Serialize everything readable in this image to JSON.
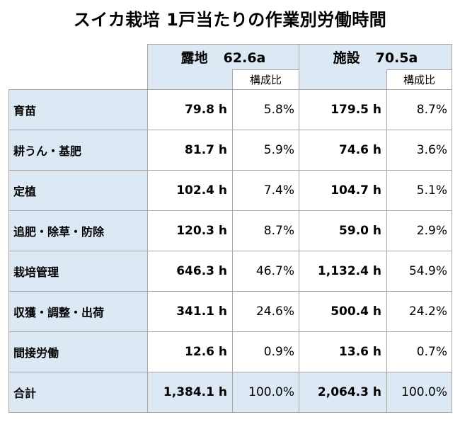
{
  "title": "スイカ栽培 1戸当たりの作業別労働時間",
  "groups": [
    {
      "name": "露地",
      "area": "62.6a",
      "ratio_header": "構成比"
    },
    {
      "name": "施設",
      "area": "70.5a",
      "ratio_header": "構成比"
    }
  ],
  "rows": [
    {
      "label": "育苗",
      "open_hours": "79.8 h",
      "open_ratio": "5.8%",
      "facility_hours": "179.5 h",
      "facility_ratio": "8.7%"
    },
    {
      "label": "耕うん・基肥",
      "open_hours": "81.7 h",
      "open_ratio": "5.9%",
      "facility_hours": "74.6 h",
      "facility_ratio": "3.6%"
    },
    {
      "label": "定植",
      "open_hours": "102.4 h",
      "open_ratio": "7.4%",
      "facility_hours": "104.7 h",
      "facility_ratio": "5.1%"
    },
    {
      "label": "追肥・除草・防除",
      "open_hours": "120.3 h",
      "open_ratio": "8.7%",
      "facility_hours": "59.0 h",
      "facility_ratio": "2.9%"
    },
    {
      "label": "栽培管理",
      "open_hours": "646.3 h",
      "open_ratio": "46.7%",
      "facility_hours": "1,132.4 h",
      "facility_ratio": "54.9%"
    },
    {
      "label": "収獲・調整・出荷",
      "open_hours": "341.1 h",
      "open_ratio": "24.6%",
      "facility_hours": "500.4 h",
      "facility_ratio": "24.2%"
    },
    {
      "label": "間接労働",
      "open_hours": "12.6 h",
      "open_ratio": "0.9%",
      "facility_hours": "13.6 h",
      "facility_ratio": "0.7%"
    }
  ],
  "total": {
    "label": "合計",
    "open_hours": "1,384.1 h",
    "open_ratio": "100.0%",
    "facility_hours": "2,064.3 h",
    "facility_ratio": "100.0%"
  },
  "colors": {
    "header_fill": "#dce9f5",
    "border": "#a6a6a6"
  }
}
